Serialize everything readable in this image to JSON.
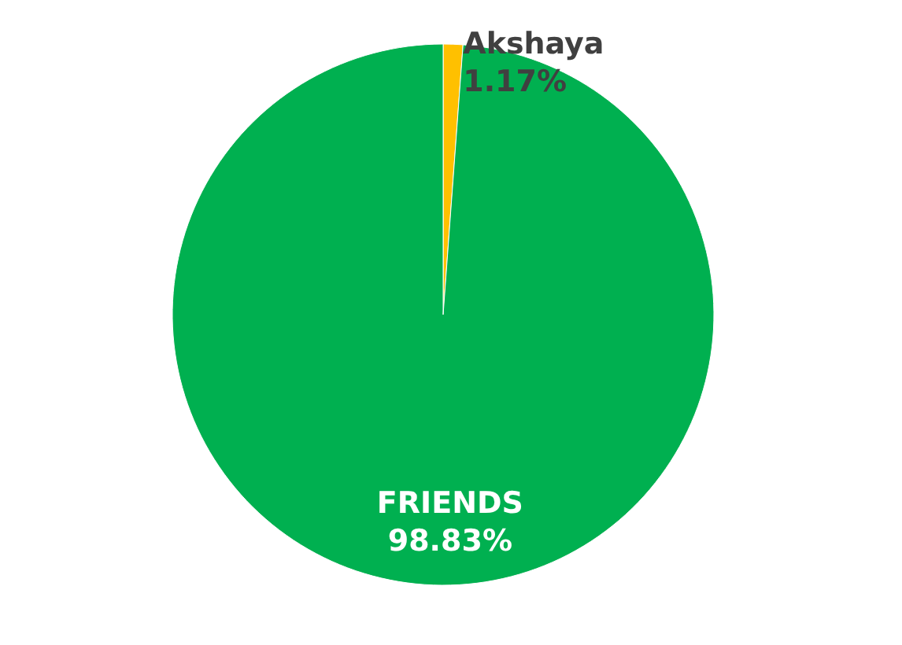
{
  "chart_data": {
    "type": "pie",
    "categories": [
      "Akshaya",
      "FRIENDS"
    ],
    "values": [
      1.17,
      98.83
    ],
    "colors": [
      "#ffc000",
      "#00b050"
    ],
    "value_labels": [
      "1.17%",
      "98.83%"
    ],
    "legend": false
  }
}
